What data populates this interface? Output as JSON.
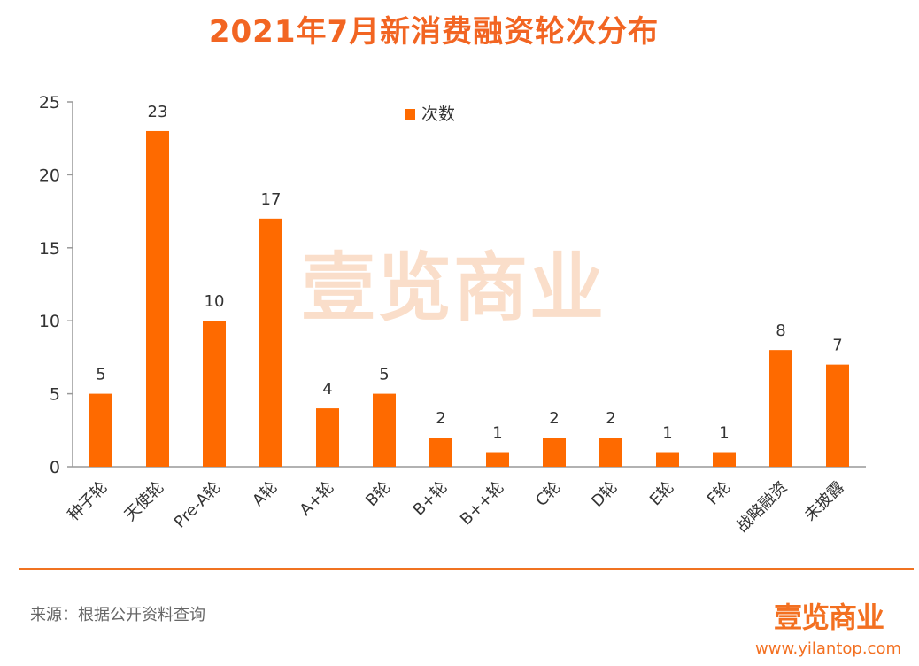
{
  "title": "2021年7月新消费融资轮次分布",
  "watermark_text": "壹览商业",
  "colors": {
    "bar": "#fe6a00",
    "axis": "#999999",
    "text": "#333333",
    "accent": "#f07321"
  },
  "chart_data": {
    "type": "bar",
    "title": "2021年7月新消费融资轮次分布",
    "categories": [
      "种子轮",
      "天使轮",
      "Pre-A轮",
      "A轮",
      "A+轮",
      "B轮",
      "B+轮",
      "B++轮",
      "C轮",
      "D轮",
      "E轮",
      "F轮",
      "战略融资",
      "未披露"
    ],
    "series": [
      {
        "name": "次数",
        "values": [
          5,
          23,
          10,
          17,
          4,
          5,
          2,
          1,
          2,
          2,
          1,
          1,
          8,
          7
        ]
      }
    ],
    "ylim": [
      0,
      25
    ],
    "yticks": [
      0,
      5,
      10,
      15,
      20,
      25
    ],
    "grid": false,
    "legend_position": "top-center",
    "xlabel": "",
    "ylabel": ""
  },
  "footer": {
    "source": "来源：根据公开资料查询",
    "brand": "壹览商业",
    "url": "www.yilantop.com"
  }
}
